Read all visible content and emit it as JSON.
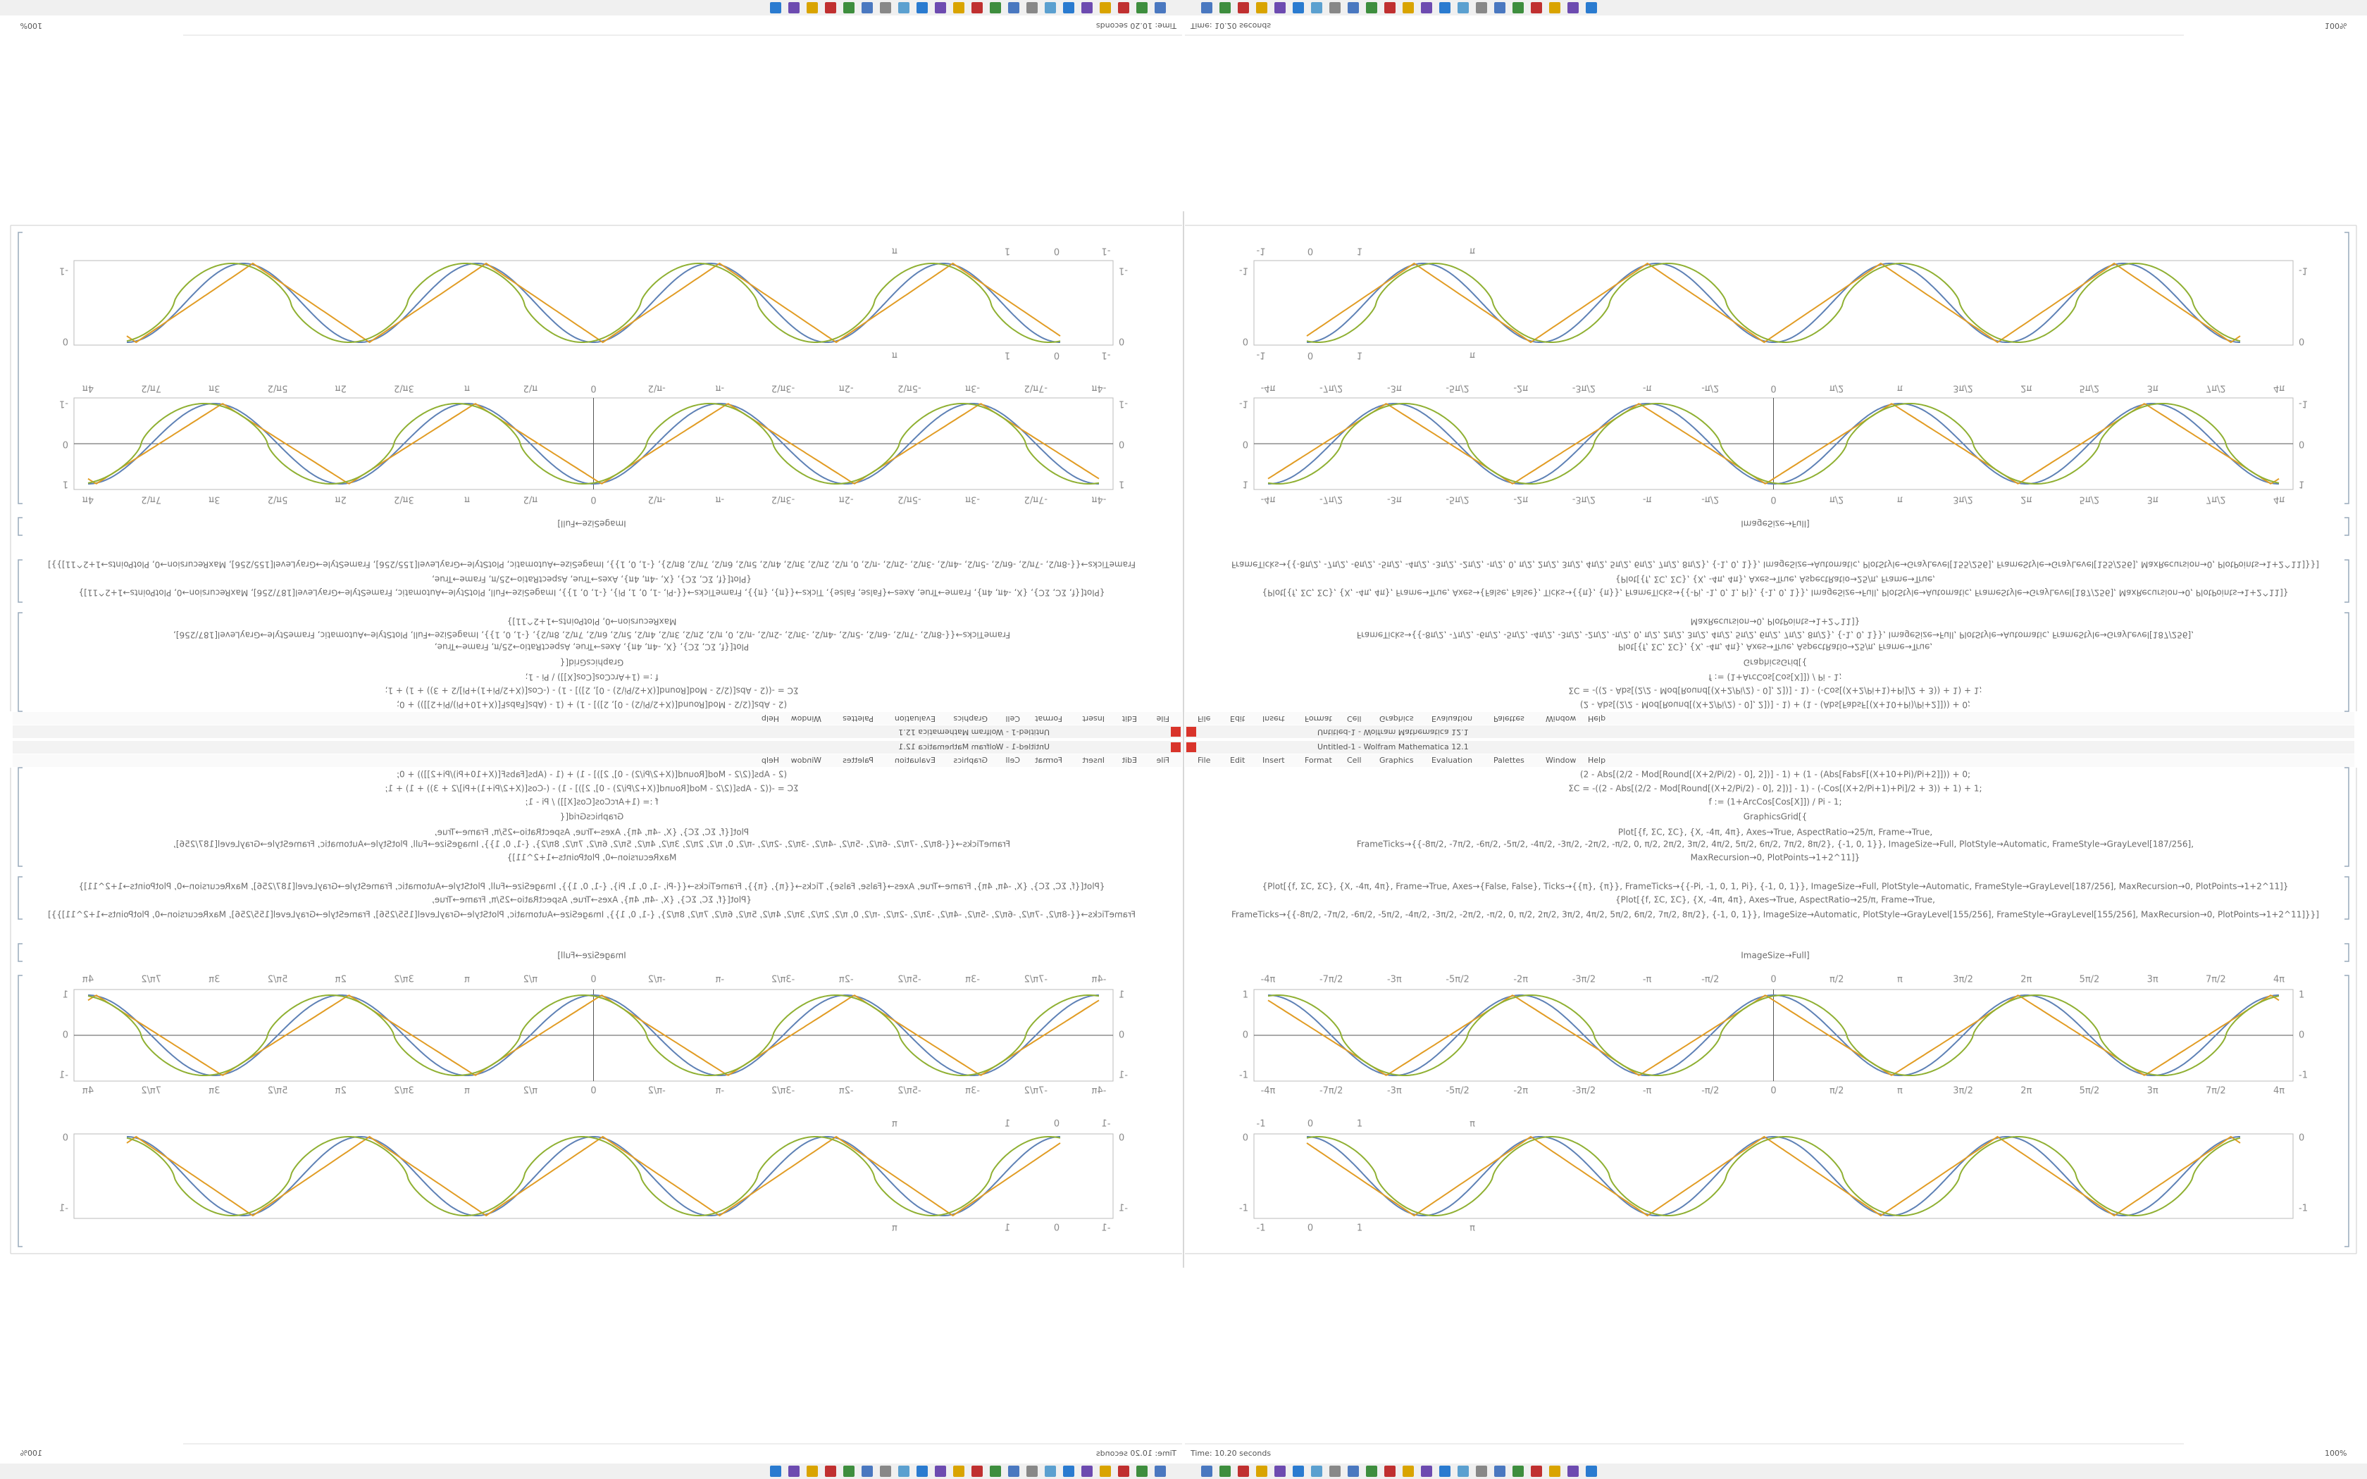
{
  "window": {
    "title": "Untitled-1 - Wolfram Mathematica 12.1",
    "status": "Time: 10.20 seconds",
    "zoom": "100%"
  },
  "menu": [
    "File",
    "Edit",
    "Insert",
    "Format",
    "Cell",
    "Graphics",
    "Evaluation",
    "Palettes",
    "Window",
    "Help"
  ],
  "cells": [
    "(2 - Abs[(2/2 - Mod[Round[(X+2/Pi/2) - 0], 2])] - 1) + (1 - (Abs[FabsF[(X+10+Pi)/Pi+2]])) + 0;",
    "ΣC = -((2 - Abs[(2/2 - Mod[Round[(X+2/Pi/2) - 0], 2])] - 1) - (-Cos[(X+2/Pi+1)+Pi]/2 + 3)) + 1) + 1;",
    "f := (1+ArcCos[Cos[X]]) / Pi - 1;",
    "GraphicsGrid[{",
    "Plot[{f, ΣC, ΣC}, {X, -4π, 4π}, Axes→True, AspectRatio→25/π, Frame→True,",
    "FrameTicks→{{-8π/2, -7π/2, -6π/2, -5π/2, -4π/2, -3π/2, -2π/2, -π/2, 0, π/2, 2π/2, 3π/2, 4π/2, 5π/2, 6π/2, 7π/2, 8π/2}, {-1, 0, 1}}, ImageSize→Full, PlotStyle→Automatic, FrameStyle→GrayLevel[187/256],",
    "MaxRecursion→0, PlotPoints→1+2^11]}",
    "{Plot[{f, ΣC, ΣC}, {X, -4π, 4π}, Frame→True, Axes→{False, False}, Ticks→{{π}, {π}}, FrameTicks→{{-Pi, -1, 0, 1, Pi}, {-1, 0, 1}}, ImageSize→Full, PlotStyle→Automatic, FrameStyle→GrayLevel[187/256], MaxRecursion→0, PlotPoints→1+2^11]}",
    "{Plot[{f, ΣC, ΣC}, {X, -4π, 4π}, Axes→True, AspectRatio→25/π, Frame→True,",
    "FrameTicks→{{-8π/2, -7π/2, -6π/2, -5π/2, -4π/2, -3π/2, -2π/2, -π/2, 0, π/2, 2π/2, 3π/2, 4π/2, 5π/2, 6π/2, 7π/2, 8π/2}, {-1, 0, 1}}, ImageSize→Automatic, PlotStyle→GrayLevel[155/256], FrameStyle→GrayLevel[155/256], MaxRecursion→0, PlotPoints→1+2^11]}}]",
    "ImageSize→Full]"
  ],
  "plot1": {
    "xticks": [
      "-4π",
      "-7π/2",
      "-3π",
      "-5π/2",
      "-2π",
      "-3π/2",
      "-π",
      "-π/2",
      "0",
      "π/2",
      "π",
      "3π/2",
      "2π",
      "5π/2",
      "3π",
      "7π/2",
      "4π"
    ],
    "yticks": [
      "1",
      "0",
      "-1"
    ]
  },
  "plot2": {
    "xticks": [
      "-1",
      "0",
      "1",
      "π"
    ],
    "yticks": [
      "0",
      "-1"
    ]
  }
}
